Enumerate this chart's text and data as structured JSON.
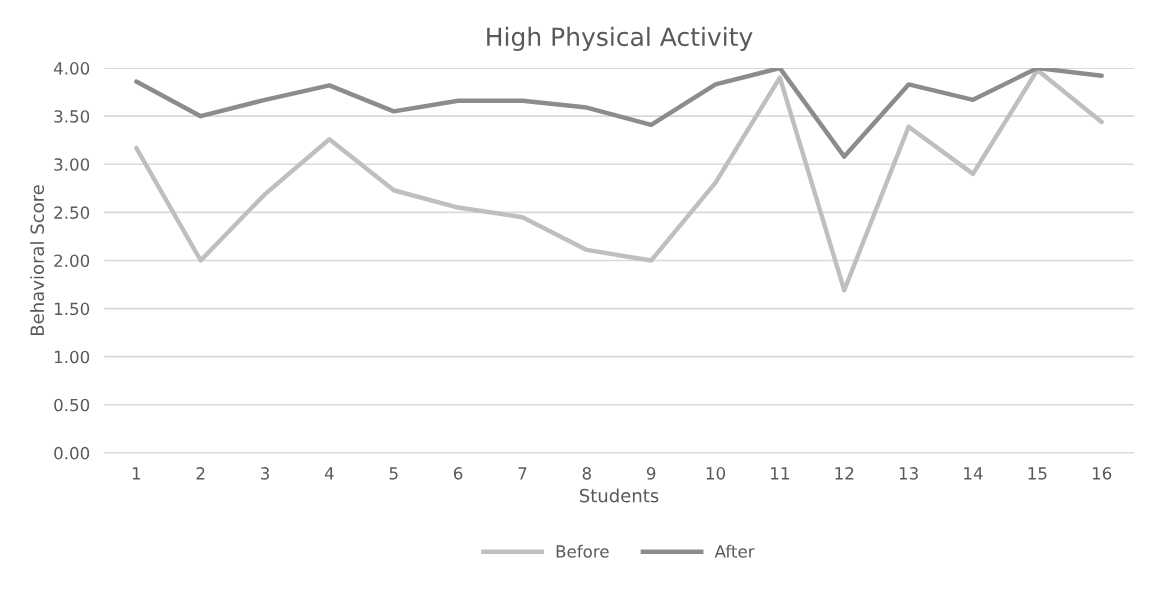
{
  "chart_data": {
    "type": "line",
    "title": "High Physical Activity",
    "xlabel": "Students",
    "ylabel": "Behavioral Score",
    "categories": [
      "1",
      "2",
      "3",
      "4",
      "5",
      "6",
      "7",
      "8",
      "9",
      "10",
      "11",
      "12",
      "13",
      "14",
      "15",
      "16"
    ],
    "series": [
      {
        "name": "Before",
        "color": "#bfbfbf",
        "values": [
          3.17,
          2.0,
          2.69,
          3.26,
          2.73,
          2.55,
          2.45,
          2.11,
          2.0,
          2.81,
          3.9,
          1.69,
          3.39,
          2.9,
          3.98,
          3.44
        ]
      },
      {
        "name": "After",
        "color": "#8c8c8c",
        "values": [
          3.86,
          3.5,
          3.67,
          3.82,
          3.55,
          3.66,
          3.66,
          3.59,
          3.41,
          3.83,
          4.0,
          3.08,
          3.83,
          3.67,
          4.0,
          3.92
        ]
      }
    ],
    "ylim": [
      0,
      4
    ],
    "yticks": [
      {
        "value": 0,
        "label": "0.00"
      },
      {
        "value": 0.5,
        "label": "0.50"
      },
      {
        "value": 1,
        "label": "1.00"
      },
      {
        "value": 1.5,
        "label": "1.50"
      },
      {
        "value": 2,
        "label": "2.00"
      },
      {
        "value": 2.5,
        "label": "2.50"
      },
      {
        "value": 3,
        "label": "3.00"
      },
      {
        "value": 3.5,
        "label": "3.50"
      },
      {
        "value": 4,
        "label": "4.00"
      }
    ],
    "grid": "y",
    "legend": "bottom",
    "marker": "none",
    "line_style": "solid"
  }
}
